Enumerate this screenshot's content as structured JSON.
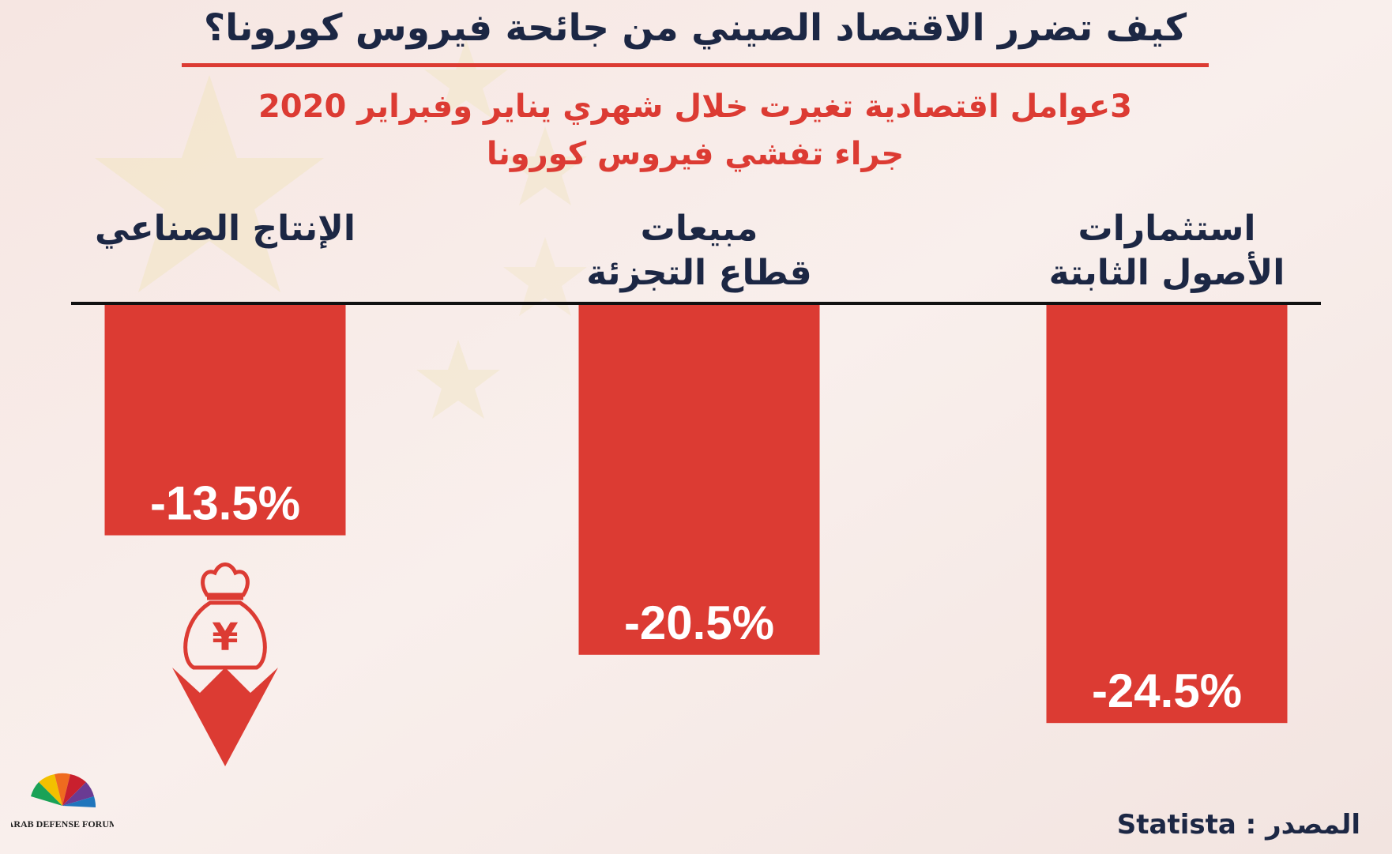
{
  "title": "كيف تضرر الاقتصاد الصيني من جائحة فيروس كورونا؟",
  "subtitle_line1": "3عوامل اقتصادية تغيرت خلال شهري يناير وفبراير 2020",
  "subtitle_line2": "جراء تفشي فيروس كورونا",
  "source_label": "المصدر : Statista",
  "logo_text": "ARAB DEFENSE FORUM",
  "colors": {
    "bar": "#dc3b33",
    "text": "#1c2744",
    "accent": "#dc3b33"
  },
  "icons": [
    "yuan-money-bag-icon",
    "down-arrow-icon",
    "china-flag-stars-background"
  ],
  "chart_data": {
    "type": "bar",
    "orientation": "vertical, negative values hanging below baseline",
    "categories": [
      {
        "line1": "",
        "line2": "الإنتاج الصناعي"
      },
      {
        "line1": "مبيعات",
        "line2": "قطاع التجزئة"
      },
      {
        "line1": "استثمارات",
        "line2": "الأصول الثابتة"
      }
    ],
    "values": [
      -13.5,
      -20.5,
      -24.5
    ],
    "value_labels": [
      "-13.5%",
      "-20.5%",
      "-24.5%"
    ],
    "unit": "%",
    "ylim": [
      -27,
      0
    ],
    "grid": false,
    "legend": "none"
  }
}
